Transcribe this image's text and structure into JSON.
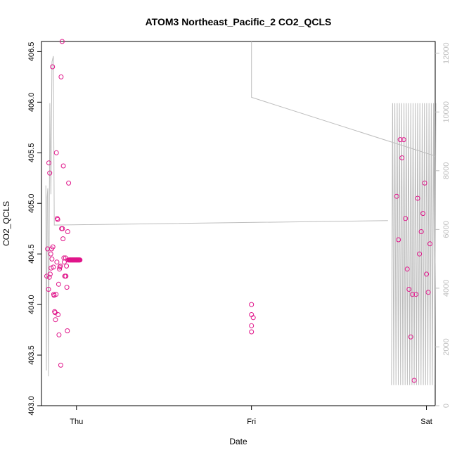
{
  "chart_data": {
    "type": "scatter",
    "title": "ATOM3 Northeast_Pacific_2 CO2_QCLS",
    "xlabel": "Date",
    "ylabel": "CO2_QCLS",
    "x_ticks": [
      "Thu",
      "Fri",
      "Sat"
    ],
    "y_ticks": [
      "403.0",
      "403.5",
      "404.0",
      "404.5",
      "405.0",
      "405.5",
      "406.0",
      "406.5"
    ],
    "y2_ticks": [
      "0",
      "2000",
      "4000",
      "6000",
      "8000",
      "10000",
      "12000"
    ],
    "xlim_days": [
      -0.2,
      2.05
    ],
    "ylim": [
      403.0,
      406.6
    ],
    "y2lim": [
      0,
      12400
    ],
    "point_color": "#e0158a",
    "line_color": "#bdbdbd",
    "series": [
      {
        "kind": "points",
        "x": [
          -0.17,
          -0.165,
          -0.16,
          -0.158,
          -0.155,
          -0.153,
          -0.15,
          -0.147,
          -0.145,
          -0.142,
          -0.14,
          -0.137,
          -0.135,
          -0.132,
          -0.13,
          -0.128,
          -0.125,
          -0.122,
          -0.12,
          -0.117,
          -0.115,
          -0.112,
          -0.11,
          -0.107,
          -0.105,
          -0.102,
          -0.1,
          -0.097,
          -0.095,
          -0.092,
          -0.09,
          -0.088,
          -0.085,
          -0.082,
          -0.08,
          -0.077,
          -0.075,
          -0.072,
          -0.07,
          -0.067,
          -0.065,
          -0.062,
          -0.06,
          -0.057,
          -0.055,
          -0.052,
          -0.05,
          -0.047,
          -0.045,
          -0.042,
          -0.04,
          -0.037,
          -0.035,
          -0.032,
          -0.03,
          -0.027,
          -0.025,
          -0.022,
          -0.02,
          -0.017,
          -0.015,
          -0.012,
          -0.01,
          -0.007,
          -0.005,
          -0.002,
          0.0,
          0.002,
          0.005,
          0.007,
          0.01,
          0.012,
          0.015,
          0.017,
          0.02
        ],
        "y": [
          404.28,
          404.55,
          404.15,
          405.4,
          404.27,
          405.3,
          404.3,
          404.5,
          404.36,
          404.55,
          404.45,
          406.35,
          404.57,
          404.37,
          404.1,
          404.09,
          403.93,
          403.92,
          403.85,
          404.1,
          405.5,
          404.42,
          404.85,
          404.84,
          403.9,
          404.2,
          403.7,
          404.35,
          404.37,
          404.38,
          403.4,
          406.25,
          404.75,
          406.6,
          404.75,
          404.65,
          405.37,
          404.46,
          404.42,
          404.28,
          404.28,
          404.46,
          404.28,
          404.38,
          404.17,
          403.74,
          404.72,
          404.44,
          405.2,
          404.44,
          404.44,
          404.44,
          404.44,
          404.44,
          404.44,
          404.44,
          404.44,
          404.44,
          404.44,
          404.44,
          404.44,
          404.44,
          404.44,
          404.44,
          404.44,
          404.44,
          404.44,
          404.44,
          404.44,
          404.44,
          404.44,
          404.44,
          404.44,
          404.44,
          404.44
        ]
      }
    ]
  }
}
